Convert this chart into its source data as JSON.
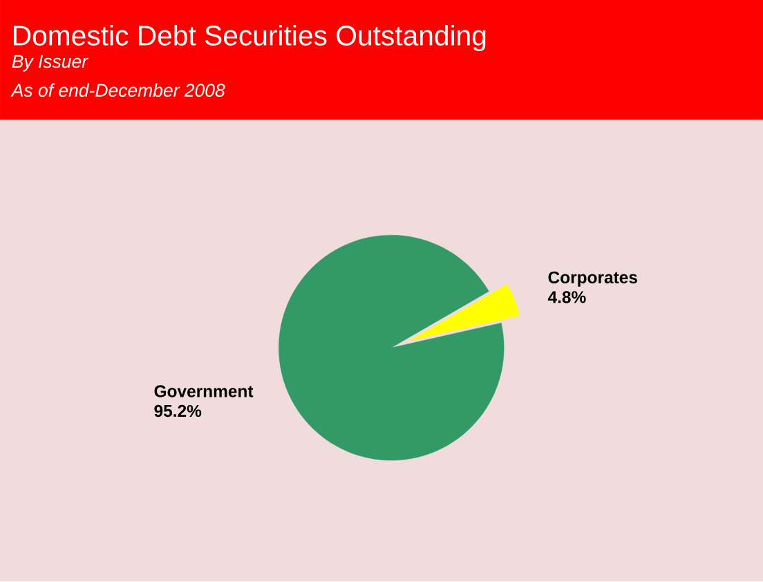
{
  "chart_data": {
    "type": "pie",
    "title": "Domestic Debt Securities Outstanding",
    "subtitle": "By Issuer",
    "annotations": [
      "As of end-December 2008"
    ],
    "categories": [
      "Government",
      "Corporates"
    ],
    "values": [
      95.2,
      4.8
    ],
    "value_labels": [
      "95.2%",
      "4.8%"
    ],
    "colors": [
      "#339966",
      "#ffff00"
    ]
  }
}
